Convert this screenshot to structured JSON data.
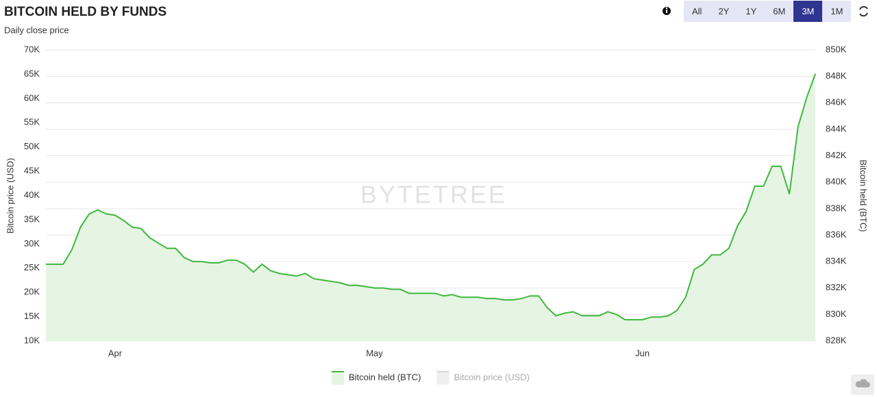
{
  "chart_data": {
    "type": "line",
    "title": "BITCOIN HELD BY FUNDS",
    "subtitle": "Daily close price",
    "categories": [
      null,
      null,
      null,
      null,
      null,
      null,
      null,
      null,
      "Apr",
      null,
      null,
      null,
      null,
      null,
      null,
      null,
      null,
      null,
      null,
      null,
      null,
      null,
      null,
      null,
      null,
      null,
      null,
      null,
      null,
      null,
      null,
      null,
      null,
      null,
      null,
      null,
      null,
      null,
      "May",
      null,
      null,
      null,
      null,
      null,
      null,
      null,
      null,
      null,
      null,
      null,
      null,
      null,
      null,
      null,
      null,
      null,
      null,
      null,
      null,
      null,
      null,
      null,
      null,
      null,
      null,
      null,
      null,
      null,
      null,
      "Jun",
      null,
      null,
      null,
      null,
      null,
      null,
      null,
      null,
      null,
      null,
      null,
      null,
      null,
      null,
      null,
      null,
      null,
      null,
      null,
      null
    ],
    "series": [
      {
        "name": "Bitcoin held (BTC)",
        "color": "#3db83d",
        "axis": "y2",
        "fill": "#e6f4e3",
        "values": [
          833800,
          833800,
          833800,
          834900,
          836600,
          837600,
          837900,
          837600,
          837500,
          837100,
          836600,
          836500,
          835800,
          835400,
          835000,
          835000,
          834300,
          834000,
          834000,
          833900,
          833900,
          834100,
          834100,
          833800,
          833200,
          833800,
          833300,
          833100,
          833000,
          832900,
          833100,
          832700,
          832600,
          832500,
          832400,
          832200,
          832200,
          832100,
          832000,
          832000,
          831900,
          831900,
          831600,
          831600,
          831600,
          831600,
          831400,
          831500,
          831300,
          831300,
          831300,
          831200,
          831200,
          831100,
          831100,
          831200,
          831400,
          831400,
          830500,
          829900,
          830100,
          830200,
          829900,
          829900,
          829900,
          830200,
          830000,
          829600,
          829600,
          829600,
          829800,
          829800,
          829900,
          830300,
          831300,
          833400,
          833800,
          834500,
          834500,
          835000,
          836700,
          837800,
          839700,
          839700,
          841200,
          841200,
          839100,
          844200,
          846400,
          848200
        ]
      },
      {
        "name": "Bitcoin price (USD)",
        "color": "#d6d6d6",
        "visible": false
      }
    ],
    "y_label": "Bitcoin price (USD)",
    "y2_label": "Bitcoin held (BTC)",
    "ylim": [
      10000,
      70000
    ],
    "yticks": [
      {
        "value": 10000,
        "label": "10K"
      },
      {
        "value": 15000,
        "label": "15K"
      },
      {
        "value": 20000,
        "label": "20K"
      },
      {
        "value": 25000,
        "label": "25K"
      },
      {
        "value": 30000,
        "label": "30K"
      },
      {
        "value": 35000,
        "label": "35K"
      },
      {
        "value": 40000,
        "label": "40K"
      },
      {
        "value": 45000,
        "label": "45K"
      },
      {
        "value": 50000,
        "label": "50K"
      },
      {
        "value": 55000,
        "label": "55K"
      },
      {
        "value": 60000,
        "label": "60K"
      },
      {
        "value": 65000,
        "label": "65K"
      },
      {
        "value": 70000,
        "label": "70K"
      }
    ],
    "y2lim": [
      828000,
      850000
    ],
    "y2ticks": [
      {
        "value": 828000,
        "label": "828K"
      },
      {
        "value": 830000,
        "label": "830K"
      },
      {
        "value": 832000,
        "label": "832K"
      },
      {
        "value": 834000,
        "label": "834K"
      },
      {
        "value": 836000,
        "label": "836K"
      },
      {
        "value": 838000,
        "label": "838K"
      },
      {
        "value": 840000,
        "label": "840K"
      },
      {
        "value": 842000,
        "label": "842K"
      },
      {
        "value": 844000,
        "label": "844K"
      },
      {
        "value": 846000,
        "label": "846K"
      },
      {
        "value": 848000,
        "label": "848K"
      },
      {
        "value": 850000,
        "label": "850K"
      }
    ],
    "grid": true,
    "legend": "bottom"
  },
  "range_buttons": [
    "All",
    "2Y",
    "1Y",
    "6M",
    "3M",
    "1M"
  ],
  "selected_range": "3M",
  "watermark": "BYTETREE"
}
